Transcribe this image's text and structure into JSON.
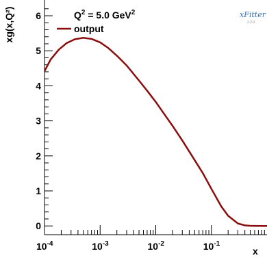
{
  "chart_data": {
    "type": "line",
    "title": "",
    "xlabel": "x",
    "ylabel": "xg(x,Q²)",
    "xscale": "log",
    "xlim": [
      0.0001,
      1
    ],
    "ylim": [
      -0.25,
      6.45
    ],
    "x_tick_labels": [
      {
        "base": "10",
        "exp": "-4"
      },
      {
        "base": "10",
        "exp": "-3"
      },
      {
        "base": "10",
        "exp": "-2"
      },
      {
        "base": "10",
        "exp": "-1"
      }
    ],
    "y_ticks": [
      "0",
      "1",
      "2",
      "3",
      "4",
      "5",
      "6"
    ],
    "legend": {
      "title_prefix": "Q",
      "title_exp": "2",
      "title_mid": " = 5.0 GeV",
      "title_exp2": "2",
      "placement": "top-left"
    },
    "series": [
      {
        "name": "output",
        "color": "#8b0c0c",
        "x": [
          0.0001,
          0.00013,
          0.00018,
          0.00025,
          0.00035,
          0.0005,
          0.0007,
          0.001,
          0.0014,
          0.002,
          0.003,
          0.005,
          0.007,
          0.01,
          0.015,
          0.02,
          0.03,
          0.05,
          0.07,
          0.1,
          0.15,
          0.2,
          0.3,
          0.4,
          0.5,
          0.6,
          0.8,
          1.0
        ],
        "y": [
          4.42,
          4.76,
          5.03,
          5.22,
          5.33,
          5.37,
          5.34,
          5.24,
          5.08,
          4.86,
          4.58,
          4.15,
          3.86,
          3.54,
          3.14,
          2.86,
          2.44,
          1.88,
          1.51,
          1.06,
          0.56,
          0.29,
          0.07,
          0.015,
          0.005,
          0.002,
          0.0,
          0.0
        ]
      }
    ]
  },
  "logo": {
    "text": "xFitter",
    "version": "2.2.0"
  }
}
